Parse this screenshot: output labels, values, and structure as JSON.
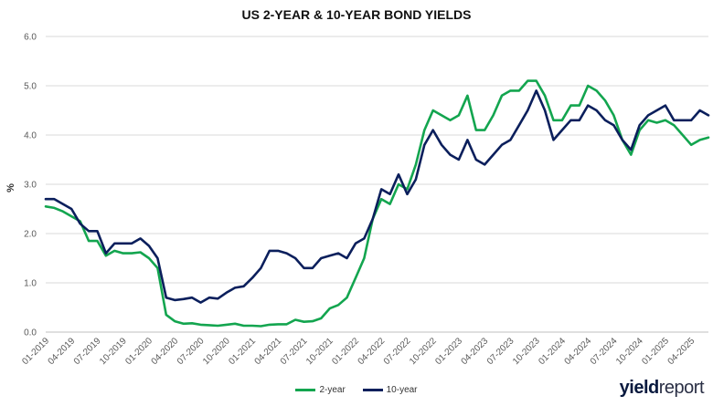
{
  "logo": {
    "text_bold": "yield",
    "text_regular": "report"
  },
  "colors": {
    "two_year": "#13a54f",
    "ten_year": "#0b1f5c",
    "grid": "#d9d9d9",
    "axis": "#bfbfbf"
  },
  "chart_data": {
    "type": "line",
    "title": "US 2-YEAR & 10-YEAR BOND YIELDS",
    "ylabel": "%",
    "xlabel": "",
    "ylim": [
      0,
      6
    ],
    "yticks": [
      "0.0",
      "1.0",
      "2.0",
      "3.0",
      "4.0",
      "5.0",
      "6.0"
    ],
    "xticks": [
      "01-2019",
      "04-2019",
      "07-2019",
      "10-2019",
      "01-2020",
      "04-2020",
      "07-2020",
      "10-2020",
      "01-2021",
      "04-2021",
      "07-2021",
      "10-2021",
      "01-2022",
      "04-2022",
      "07-2022",
      "10-2022",
      "01-2023",
      "04-2023",
      "07-2023",
      "10-2023",
      "01-2024",
      "04-2024",
      "07-2024",
      "10-2024",
      "01-2025",
      "04-2025"
    ],
    "grid": true,
    "legend_position": "bottom",
    "x": [
      "2019-01",
      "2019-02",
      "2019-03",
      "2019-04",
      "2019-05",
      "2019-06",
      "2019-07",
      "2019-08",
      "2019-09",
      "2019-10",
      "2019-11",
      "2019-12",
      "2020-01",
      "2020-02",
      "2020-03",
      "2020-04",
      "2020-05",
      "2020-06",
      "2020-07",
      "2020-08",
      "2020-09",
      "2020-10",
      "2020-11",
      "2020-12",
      "2021-01",
      "2021-02",
      "2021-03",
      "2021-04",
      "2021-05",
      "2021-06",
      "2021-07",
      "2021-08",
      "2021-09",
      "2021-10",
      "2021-11",
      "2021-12",
      "2022-01",
      "2022-02",
      "2022-03",
      "2022-04",
      "2022-05",
      "2022-06",
      "2022-07",
      "2022-08",
      "2022-09",
      "2022-10",
      "2022-11",
      "2022-12",
      "2023-01",
      "2023-02",
      "2023-03",
      "2023-04",
      "2023-05",
      "2023-06",
      "2023-07",
      "2023-08",
      "2023-09",
      "2023-10",
      "2023-11",
      "2023-12",
      "2024-01",
      "2024-02",
      "2024-03",
      "2024-04",
      "2024-05",
      "2024-06",
      "2024-07",
      "2024-08",
      "2024-09",
      "2024-10",
      "2024-11",
      "2024-12",
      "2025-01",
      "2025-02",
      "2025-03",
      "2025-04",
      "2025-05",
      "2025-06"
    ],
    "series": [
      {
        "name": "2-year",
        "values": [
          2.55,
          2.52,
          2.45,
          2.35,
          2.25,
          1.85,
          1.85,
          1.55,
          1.65,
          1.6,
          1.6,
          1.62,
          1.5,
          1.3,
          0.35,
          0.22,
          0.17,
          0.18,
          0.15,
          0.14,
          0.13,
          0.15,
          0.17,
          0.13,
          0.13,
          0.12,
          0.15,
          0.16,
          0.16,
          0.25,
          0.21,
          0.22,
          0.28,
          0.48,
          0.55,
          0.7,
          1.1,
          1.5,
          2.3,
          2.7,
          2.6,
          3.0,
          2.9,
          3.4,
          4.1,
          4.5,
          4.4,
          4.3,
          4.4,
          4.8,
          4.1,
          4.1,
          4.4,
          4.8,
          4.9,
          4.9,
          5.1,
          5.1,
          4.8,
          4.3,
          4.3,
          4.6,
          4.6,
          5.0,
          4.9,
          4.7,
          4.4,
          3.9,
          3.6,
          4.1,
          4.3,
          4.25,
          4.3,
          4.2,
          4.0,
          3.8,
          3.9,
          3.95
        ]
      },
      {
        "name": "10-year",
        "values": [
          2.7,
          2.7,
          2.6,
          2.5,
          2.2,
          2.05,
          2.05,
          1.6,
          1.8,
          1.8,
          1.8,
          1.9,
          1.75,
          1.5,
          0.7,
          0.65,
          0.67,
          0.7,
          0.6,
          0.7,
          0.68,
          0.8,
          0.9,
          0.93,
          1.1,
          1.3,
          1.65,
          1.65,
          1.6,
          1.5,
          1.3,
          1.3,
          1.5,
          1.55,
          1.6,
          1.5,
          1.8,
          1.9,
          2.3,
          2.9,
          2.8,
          3.2,
          2.8,
          3.1,
          3.8,
          4.1,
          3.8,
          3.6,
          3.5,
          3.9,
          3.5,
          3.4,
          3.6,
          3.8,
          3.9,
          4.2,
          4.5,
          4.9,
          4.5,
          3.9,
          4.1,
          4.3,
          4.3,
          4.6,
          4.5,
          4.3,
          4.2,
          3.9,
          3.7,
          4.2,
          4.4,
          4.5,
          4.6,
          4.3,
          4.3,
          4.3,
          4.5,
          4.4
        ]
      }
    ]
  }
}
